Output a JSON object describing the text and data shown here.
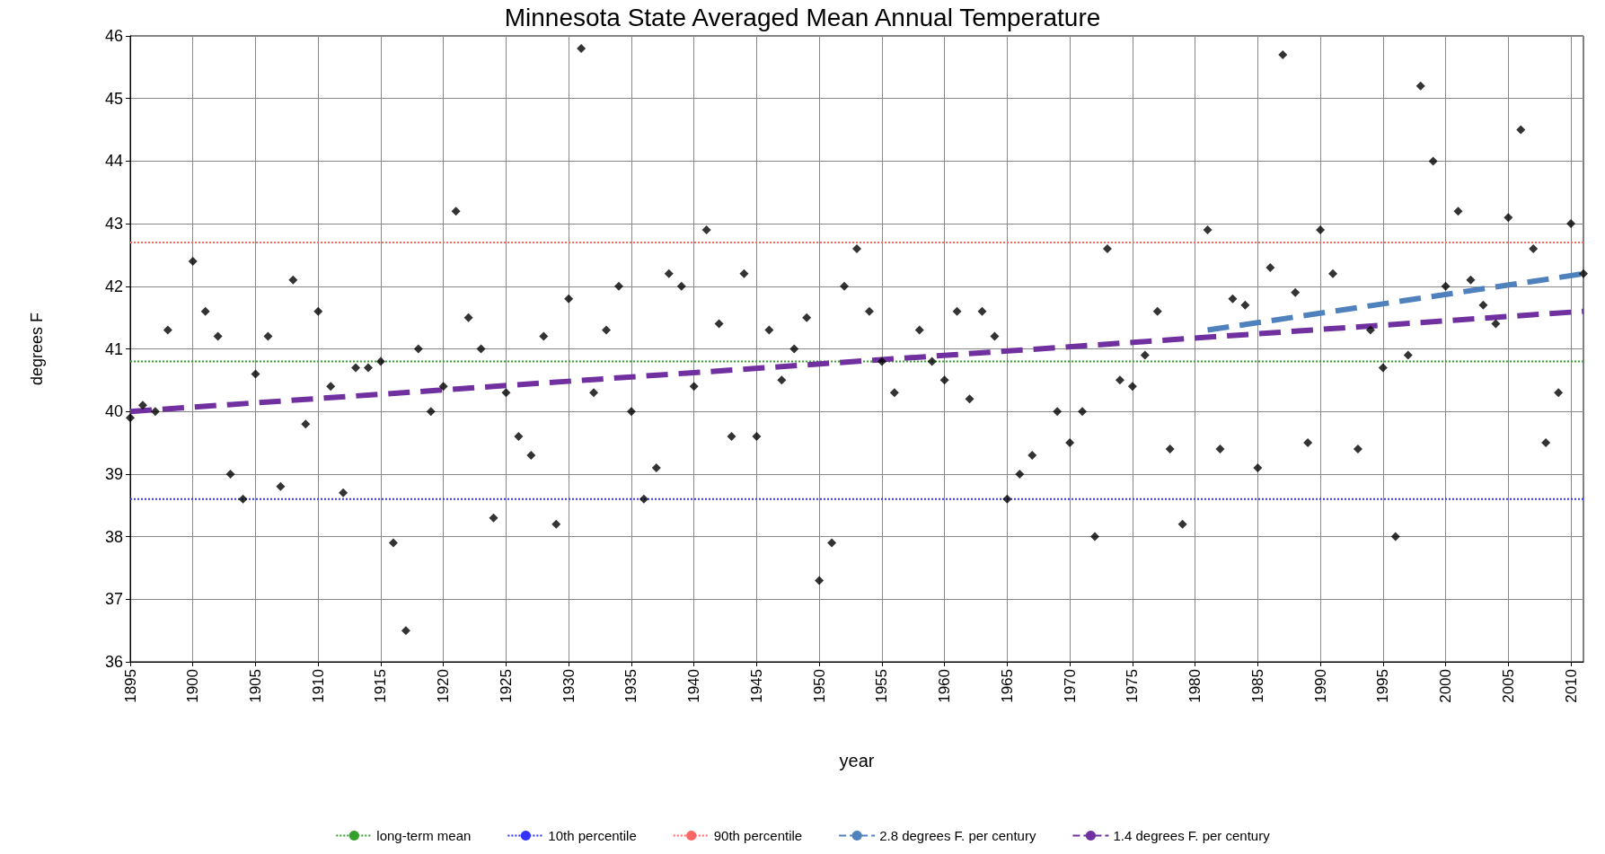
{
  "chart_data": {
    "type": "scatter",
    "title": "Minnesota State Averaged Mean Annual Temperature",
    "xlabel": "year",
    "ylabel": "degrees F",
    "xlim": [
      1895,
      2011
    ],
    "xticks": [
      1895,
      1900,
      1905,
      1910,
      1915,
      1920,
      1925,
      1930,
      1935,
      1940,
      1945,
      1950,
      1955,
      1960,
      1965,
      1970,
      1975,
      1980,
      1985,
      1990,
      1995,
      2000,
      2005,
      2010
    ],
    "ylim": [
      36,
      46
    ],
    "yticks": [
      36,
      37,
      38,
      39,
      40,
      41,
      42,
      43,
      44,
      45,
      46
    ],
    "grid": true,
    "legend": "bottom",
    "marker": "diamond",
    "series": [
      {
        "color": "#000000",
        "x": [
          1895,
          1896,
          1897,
          1898,
          1899,
          1900,
          1901,
          1902,
          1903,
          1904,
          1905,
          1906,
          1907,
          1908,
          1909,
          1910,
          1911,
          1912,
          1913,
          1914,
          1915,
          1916,
          1917,
          1918,
          1919,
          1920,
          1921,
          1922,
          1923,
          1924,
          1925,
          1926,
          1927,
          1928,
          1929,
          1930,
          1931,
          1932,
          1933,
          1934,
          1935,
          1936,
          1937,
          1938,
          1939,
          1940,
          1941,
          1942,
          1943,
          1944,
          1945,
          1946,
          1947,
          1948,
          1949,
          1950,
          1951,
          1952,
          1953,
          1954,
          1955,
          1956,
          1957,
          1958,
          1959,
          1960,
          1961,
          1962,
          1963,
          1964,
          1965,
          1966,
          1967,
          1968,
          1969,
          1970,
          1971,
          1972,
          1973,
          1974,
          1975,
          1976,
          1977,
          1978,
          1979,
          1980,
          1981,
          1982,
          1983,
          1984,
          1985,
          1986,
          1987,
          1988,
          1989,
          1990,
          1991,
          1992,
          1993,
          1994,
          1995,
          1996,
          1997,
          1998,
          1999,
          2000,
          2001,
          2002,
          2003,
          2004,
          2005,
          2006,
          2007,
          2008,
          2009,
          2010,
          2011
        ],
        "values": [
          39.9,
          40.1,
          40.0,
          41.3,
          null,
          42.4,
          41.6,
          41.2,
          39.0,
          38.6,
          40.6,
          41.2,
          38.8,
          42.1,
          39.8,
          41.6,
          40.4,
          38.7,
          40.7,
          40.7,
          40.8,
          37.9,
          36.5,
          41.0,
          40.0,
          40.4,
          43.2,
          41.5,
          41.0,
          38.3,
          40.3,
          39.6,
          39.3,
          41.2,
          38.2,
          41.8,
          45.8,
          40.3,
          41.3,
          42.0,
          40.0,
          38.6,
          39.1,
          42.2,
          42.0,
          40.4,
          42.9,
          41.4,
          39.6,
          42.2,
          39.6,
          41.3,
          40.5,
          41.0,
          41.5,
          37.3,
          37.9,
          42.0,
          42.6,
          41.6,
          40.8,
          40.3,
          null,
          41.3,
          40.8,
          40.5,
          41.6,
          40.2,
          41.6,
          41.2,
          38.6,
          39.0,
          39.3,
          null,
          40.0,
          39.5,
          40.0,
          38.0,
          42.6,
          40.5,
          40.4,
          40.9,
          41.6,
          39.4,
          38.2,
          null,
          42.9,
          39.4,
          41.8,
          41.7,
          39.1,
          42.3,
          45.7,
          41.9,
          39.5,
          42.9,
          42.2,
          null,
          39.4,
          41.3,
          40.7,
          38.0,
          40.9,
          45.2,
          44.0,
          42.0,
          43.2,
          42.1,
          41.7,
          41.4,
          43.1,
          44.5,
          42.6,
          39.5,
          40.3,
          43.0,
          42.2
        ]
      },
      {
        "type": "line",
        "name": "2.8 degrees F. per century",
        "color": "#4f81bd",
        "line_style": "dashed",
        "marker": "none",
        "x": [
          1981,
          2011
        ],
        "values": [
          41.3,
          42.2
        ]
      },
      {
        "type": "line",
        "name": "1.4 degrees F. per century",
        "color": "#7030a0",
        "line_style": "dashed",
        "marker": "none",
        "x": [
          1895,
          2011
        ],
        "values": [
          40.0,
          41.6
        ]
      }
    ],
    "ref_lines": [
      {
        "axis": "y",
        "value": 40.8,
        "label": "long-term mean",
        "color": "#33a02c",
        "line_style": "dotted"
      },
      {
        "axis": "y",
        "value": 38.6,
        "label": "10th percentile",
        "color": "#3333ff",
        "line_style": "dotted"
      },
      {
        "axis": "y",
        "value": 42.7,
        "label": "90th percentile",
        "color": "#ff6666",
        "line_style": "dotted"
      }
    ]
  }
}
